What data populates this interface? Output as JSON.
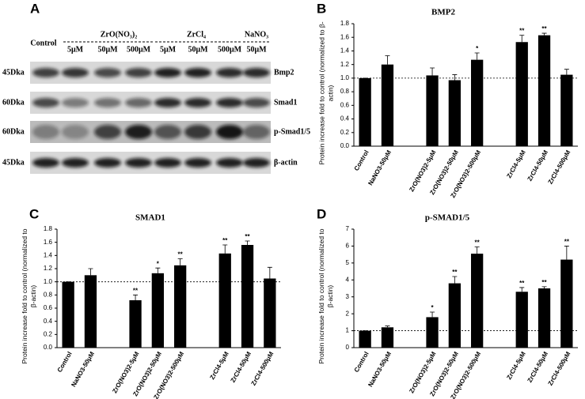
{
  "blot": {
    "panel_label": "A",
    "control_label": "Control",
    "groups": [
      "ZrO(NO₃)₂",
      "ZrCl₄",
      "NaNO₃"
    ],
    "concentrations": [
      "5μM",
      "50μM",
      "500μM",
      "5μM",
      "50μM",
      "500μM",
      "50μM"
    ],
    "sizes": [
      "45Dka",
      "60Dka",
      "60Dka",
      "45Dka"
    ],
    "proteins": [
      "Bmp2",
      "Smad1",
      "p-Smad1/5",
      "β-actin"
    ]
  },
  "chart_data": [
    {
      "type": "bar",
      "panel_label": "B",
      "title": "BMP2",
      "y_label": "Protein increase fold to control (normalized to β-actin)",
      "categories": [
        "Control",
        "NaNO3-50μM",
        null,
        "ZrO(NO3)2-5μM",
        "ZrO(NO3)2-50μM",
        "ZrO(NO3)2-500μM",
        null,
        "ZrCl4-5μM",
        "ZrCl4-50μM",
        "ZrCl4-500μM"
      ],
      "values": [
        1.0,
        1.2,
        null,
        1.04,
        0.97,
        1.27,
        null,
        1.53,
        1.63,
        1.05
      ],
      "errors": [
        0,
        0.13,
        null,
        0.11,
        0.08,
        0.1,
        null,
        0.1,
        0.03,
        0.08
      ],
      "significance": [
        null,
        null,
        null,
        null,
        null,
        "*",
        null,
        "**",
        "**",
        null
      ],
      "color": "#000000",
      "reference_line": 1.0,
      "ylim": [
        0,
        1.8
      ],
      "yticks": [
        {
          "value": 0,
          "label": "0.0"
        },
        {
          "value": 0.2,
          "label": "0.2"
        },
        {
          "value": 0.4,
          "label": "0.4"
        },
        {
          "value": 0.6,
          "label": "0.6"
        },
        {
          "value": 0.8,
          "label": "0.8"
        },
        {
          "value": 1.0,
          "label": "1.0"
        },
        {
          "value": 1.2,
          "label": "1.2"
        },
        {
          "value": 1.4,
          "label": "1.4"
        },
        {
          "value": 1.6,
          "label": "1.6"
        },
        {
          "value": 1.8,
          "label": "1.8"
        }
      ]
    },
    {
      "type": "bar",
      "panel_label": "C",
      "title": "SMAD1",
      "y_label": "Protein increase fold to control (normalized to β-actin)",
      "categories": [
        "Control",
        "NaNO3-50μM",
        null,
        "ZrO(NO3)2-5μM",
        "ZrO(NO3)2-50μM",
        "ZrO(NO3)2-500μM",
        null,
        "ZrCl4-5μM",
        "ZrCl4-50μM",
        "ZrCl4-500μM"
      ],
      "values": [
        1.0,
        1.1,
        null,
        0.72,
        1.13,
        1.25,
        null,
        1.43,
        1.56,
        1.05
      ],
      "errors": [
        0,
        0.1,
        null,
        0.08,
        0.08,
        0.1,
        null,
        0.13,
        0.06,
        0.17
      ],
      "significance": [
        null,
        null,
        null,
        "**",
        "*",
        "**",
        null,
        "**",
        "**",
        null
      ],
      "color": "#000000",
      "reference_line": 1.0,
      "ylim": [
        0,
        1.8
      ],
      "yticks": [
        {
          "value": 0,
          "label": "0.0"
        },
        {
          "value": 0.2,
          "label": "0.2"
        },
        {
          "value": 0.4,
          "label": "0.4"
        },
        {
          "value": 0.6,
          "label": "0.6"
        },
        {
          "value": 0.8,
          "label": "0.8"
        },
        {
          "value": 1.0,
          "label": "1.0"
        },
        {
          "value": 1.2,
          "label": "1.2"
        },
        {
          "value": 1.4,
          "label": "1.4"
        },
        {
          "value": 1.6,
          "label": "1.6"
        },
        {
          "value": 1.8,
          "label": "1.8"
        }
      ]
    },
    {
      "type": "bar",
      "panel_label": "D",
      "title": "p-SMAD1/5",
      "y_label": "Protein increase fold to control (normalized to β-actin)",
      "categories": [
        "Control",
        "NaNO3-50μM",
        null,
        "ZrO(NO3)2-5μM",
        "ZrO(NO3)2-50μM",
        "ZrO(NO3)2-500μM",
        null,
        "ZrCl4-5μM",
        "ZrCl4-50μM",
        "ZrCl4-500μM"
      ],
      "values": [
        1.0,
        1.2,
        null,
        1.8,
        3.8,
        5.55,
        null,
        3.3,
        3.5,
        5.2
      ],
      "errors": [
        0,
        0.08,
        null,
        0.3,
        0.4,
        0.4,
        null,
        0.25,
        0.1,
        0.8
      ],
      "significance": [
        null,
        null,
        null,
        "*",
        "**",
        "**",
        null,
        "**",
        "**",
        "**"
      ],
      "color": "#000000",
      "reference_line": 1,
      "ylim": [
        0,
        7
      ],
      "yticks": [
        0,
        1,
        2,
        3,
        4,
        5,
        6,
        7
      ]
    }
  ]
}
